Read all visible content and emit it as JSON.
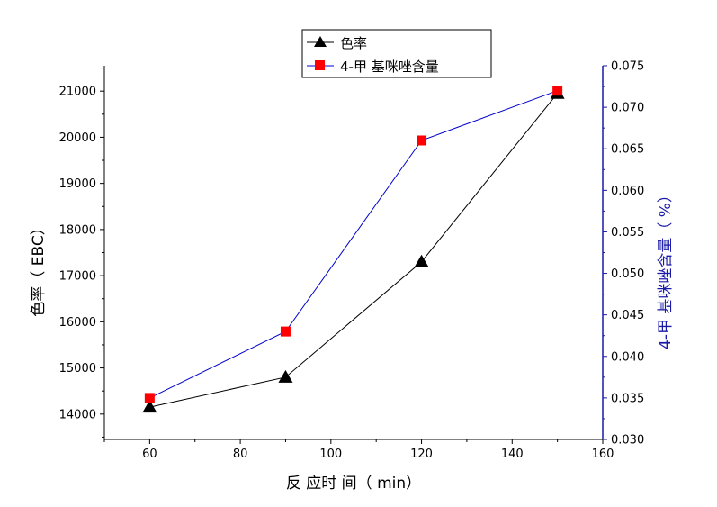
{
  "chart_data": {
    "type": "line",
    "x": [
      60,
      90,
      120,
      150
    ],
    "xlabel": "反 应时 间（ min）",
    "xlim": [
      50,
      160
    ],
    "xticks": [
      60,
      80,
      100,
      120,
      140,
      160
    ],
    "y_left": {
      "label": "色率（ EBC）",
      "lim": [
        13450,
        21550
      ],
      "ticks": [
        14000,
        15000,
        16000,
        17000,
        18000,
        19000,
        20000,
        21000
      ]
    },
    "y_right": {
      "label": "4-甲 基咪唑含量（ %）",
      "lim": [
        0.03,
        0.075
      ],
      "ticks": [
        "0.030",
        "0.035",
        "0.040",
        "0.045",
        "0.050",
        "0.055",
        "0.060",
        "0.065",
        "0.070",
        "0.075"
      ]
    },
    "series": [
      {
        "name": "色率",
        "axis": "left",
        "marker": "triangle",
        "color": "#000000",
        "values": [
          14150,
          14800,
          17300,
          20950
        ]
      },
      {
        "name": "4-甲 基咪唑含量",
        "axis": "right",
        "marker": "square",
        "color": "#ff0000",
        "line_color": "#0000cc",
        "values": [
          0.035,
          0.043,
          0.066,
          0.072
        ]
      }
    ],
    "legend": "top-center",
    "grid": false
  }
}
